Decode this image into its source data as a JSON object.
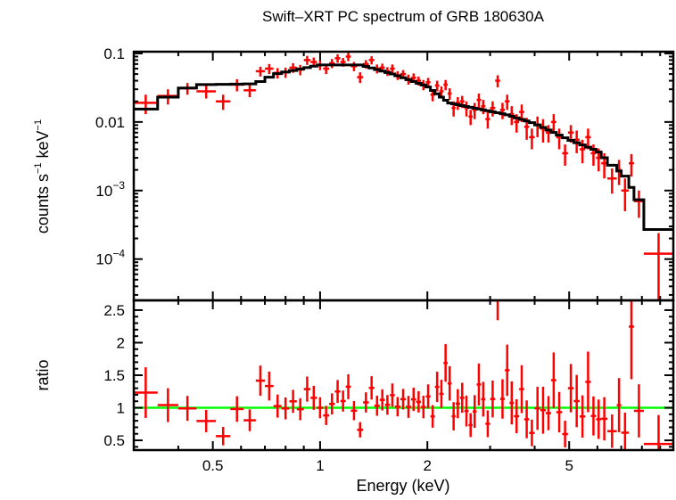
{
  "chart_data": {
    "type": "scatter",
    "title": "Swift–XRT PC spectrum of GRB 180630A",
    "xlabel": "Energy (keV)",
    "xscale": "log",
    "xlim": [
      0.3,
      9.8
    ],
    "xticks": [
      {
        "v": 0.5,
        "label": "0.5"
      },
      {
        "v": 1,
        "label": "1"
      },
      {
        "v": 2,
        "label": "2"
      },
      {
        "v": 5,
        "label": "5"
      }
    ],
    "top": {
      "ylabel_main": "counts s",
      "ylabel_sup1": "−1",
      "ylabel_mid": " keV",
      "ylabel_sup2": "−1",
      "yscale": "log",
      "ylim": [
        2.5e-05,
        0.106
      ],
      "yticks": [
        {
          "v": 0.1,
          "label": "0.1"
        },
        {
          "v": 0.01,
          "label": "0.01"
        },
        {
          "v": 0.001,
          "base": "10",
          "exp": "−3"
        },
        {
          "v": 0.0001,
          "base": "10",
          "exp": "−4"
        }
      ]
    },
    "bottom": {
      "ylabel": "ratio",
      "ylim": [
        0.35,
        2.65
      ],
      "yticks": [
        {
          "v": 0.5,
          "label": "0.5"
        },
        {
          "v": 1,
          "label": "1"
        },
        {
          "v": 1.5,
          "label": "1.5"
        },
        {
          "v": 2,
          "label": "2"
        },
        {
          "v": 2.5,
          "label": "2.5"
        }
      ],
      "reference": 1
    },
    "series": [
      {
        "name": "data",
        "color": "#ff0000",
        "format": "[E_lo, E_hi, counts, err]",
        "points": [
          [
            0.3,
            0.35,
            0.019,
            0.006
          ],
          [
            0.35,
            0.4,
            0.024,
            0.006
          ],
          [
            0.4,
            0.45,
            0.031,
            0.006
          ],
          [
            0.45,
            0.51,
            0.028,
            0.006
          ],
          [
            0.51,
            0.56,
            0.02,
            0.005
          ],
          [
            0.56,
            0.61,
            0.035,
            0.007
          ],
          [
            0.61,
            0.66,
            0.029,
            0.006
          ],
          [
            0.66,
            0.7,
            0.055,
            0.009
          ],
          [
            0.7,
            0.74,
            0.06,
            0.01
          ],
          [
            0.74,
            0.78,
            0.052,
            0.009
          ],
          [
            0.78,
            0.82,
            0.053,
            0.009
          ],
          [
            0.82,
            0.86,
            0.062,
            0.01
          ],
          [
            0.86,
            0.9,
            0.058,
            0.01
          ],
          [
            0.9,
            0.94,
            0.08,
            0.012
          ],
          [
            0.94,
            0.98,
            0.075,
            0.012
          ],
          [
            0.98,
            1.02,
            0.068,
            0.011
          ],
          [
            1.02,
            1.06,
            0.06,
            0.01
          ],
          [
            1.06,
            1.1,
            0.072,
            0.011
          ],
          [
            1.1,
            1.14,
            0.085,
            0.012
          ],
          [
            1.14,
            1.18,
            0.075,
            0.011
          ],
          [
            1.18,
            1.22,
            0.09,
            0.013
          ],
          [
            1.22,
            1.27,
            0.065,
            0.01
          ],
          [
            1.27,
            1.32,
            0.045,
            0.008
          ],
          [
            1.32,
            1.37,
            0.07,
            0.01
          ],
          [
            1.37,
            1.42,
            0.08,
            0.011
          ],
          [
            1.42,
            1.47,
            0.06,
            0.009
          ],
          [
            1.47,
            1.52,
            0.062,
            0.009
          ],
          [
            1.52,
            1.57,
            0.055,
            0.008
          ],
          [
            1.57,
            1.62,
            0.06,
            0.009
          ],
          [
            1.62,
            1.68,
            0.048,
            0.007
          ],
          [
            1.68,
            1.74,
            0.05,
            0.007
          ],
          [
            1.74,
            1.8,
            0.042,
            0.007
          ],
          [
            1.8,
            1.86,
            0.044,
            0.007
          ],
          [
            1.86,
            1.92,
            0.04,
            0.006
          ],
          [
            1.92,
            1.98,
            0.035,
            0.006
          ],
          [
            1.98,
            2.04,
            0.038,
            0.006
          ],
          [
            2.04,
            2.1,
            0.025,
            0.005
          ],
          [
            2.1,
            2.16,
            0.034,
            0.006
          ],
          [
            2.16,
            2.22,
            0.028,
            0.005
          ],
          [
            2.22,
            2.28,
            0.035,
            0.006
          ],
          [
            2.28,
            2.34,
            0.026,
            0.005
          ],
          [
            2.34,
            2.4,
            0.016,
            0.004
          ],
          [
            2.4,
            2.47,
            0.019,
            0.004
          ],
          [
            2.47,
            2.54,
            0.02,
            0.004
          ],
          [
            2.54,
            2.61,
            0.016,
            0.004
          ],
          [
            2.61,
            2.68,
            0.012,
            0.003
          ],
          [
            2.68,
            2.75,
            0.015,
            0.004
          ],
          [
            2.75,
            2.83,
            0.021,
            0.005
          ],
          [
            2.83,
            2.91,
            0.017,
            0.004
          ],
          [
            2.91,
            3.0,
            0.011,
            0.003
          ],
          [
            3.0,
            3.1,
            0.016,
            0.004
          ],
          [
            3.1,
            3.2,
            0.04,
            0.008
          ],
          [
            3.2,
            3.3,
            0.015,
            0.004
          ],
          [
            3.3,
            3.4,
            0.02,
            0.005
          ],
          [
            3.4,
            3.5,
            0.013,
            0.004
          ],
          [
            3.5,
            3.62,
            0.01,
            0.003
          ],
          [
            3.62,
            3.74,
            0.014,
            0.004
          ],
          [
            3.74,
            3.86,
            0.0085,
            0.003
          ],
          [
            3.86,
            4.0,
            0.006,
            0.002
          ],
          [
            4.0,
            4.15,
            0.009,
            0.003
          ],
          [
            4.15,
            4.3,
            0.008,
            0.003
          ],
          [
            4.3,
            4.45,
            0.007,
            0.002
          ],
          [
            4.45,
            4.6,
            0.01,
            0.003
          ],
          [
            4.6,
            4.78,
            0.006,
            0.002
          ],
          [
            4.78,
            4.96,
            0.0035,
            0.0012
          ],
          [
            4.96,
            5.15,
            0.007,
            0.002
          ],
          [
            5.15,
            5.35,
            0.0055,
            0.002
          ],
          [
            5.35,
            5.55,
            0.004,
            0.0015
          ],
          [
            5.55,
            5.75,
            0.006,
            0.002
          ],
          [
            5.75,
            5.95,
            0.0035,
            0.0012
          ],
          [
            5.95,
            6.15,
            0.003,
            0.0011
          ],
          [
            6.15,
            6.4,
            0.0025,
            0.001
          ],
          [
            6.4,
            6.8,
            0.0015,
            0.0006
          ],
          [
            6.8,
            7.0,
            0.002,
            0.0008
          ],
          [
            7.0,
            7.35,
            0.001,
            0.0005
          ],
          [
            7.35,
            7.6,
            0.0025,
            0.0009
          ],
          [
            7.6,
            8.1,
            0.0007,
            0.0003
          ],
          [
            8.1,
            9.8,
            0.00012,
            0.00012
          ]
        ]
      },
      {
        "name": "model",
        "color": "#000000",
        "format": "[E, value] breakpoints",
        "points": [
          [
            0.3,
            0.0125
          ],
          [
            0.35,
            0.019
          ],
          [
            0.4,
            0.028
          ],
          [
            0.45,
            0.035
          ],
          [
            0.66,
            0.036
          ],
          [
            0.75,
            0.05
          ],
          [
            1.0,
            0.068
          ],
          [
            1.3,
            0.068
          ],
          [
            1.6,
            0.05
          ],
          [
            2.0,
            0.033
          ],
          [
            2.3,
            0.019
          ],
          [
            2.7,
            0.016
          ],
          [
            3.3,
            0.013
          ],
          [
            4.0,
            0.0095
          ],
          [
            5.0,
            0.0055
          ],
          [
            6.0,
            0.0038
          ],
          [
            6.5,
            0.0025
          ],
          [
            7.3,
            0.0015
          ],
          [
            7.6,
            0.0009
          ],
          [
            8.1,
            0.0006
          ],
          [
            8.2,
            0.00027
          ],
          [
            10,
            0.00027
          ]
        ]
      },
      {
        "name": "unity",
        "color": "#00ff00"
      }
    ]
  }
}
